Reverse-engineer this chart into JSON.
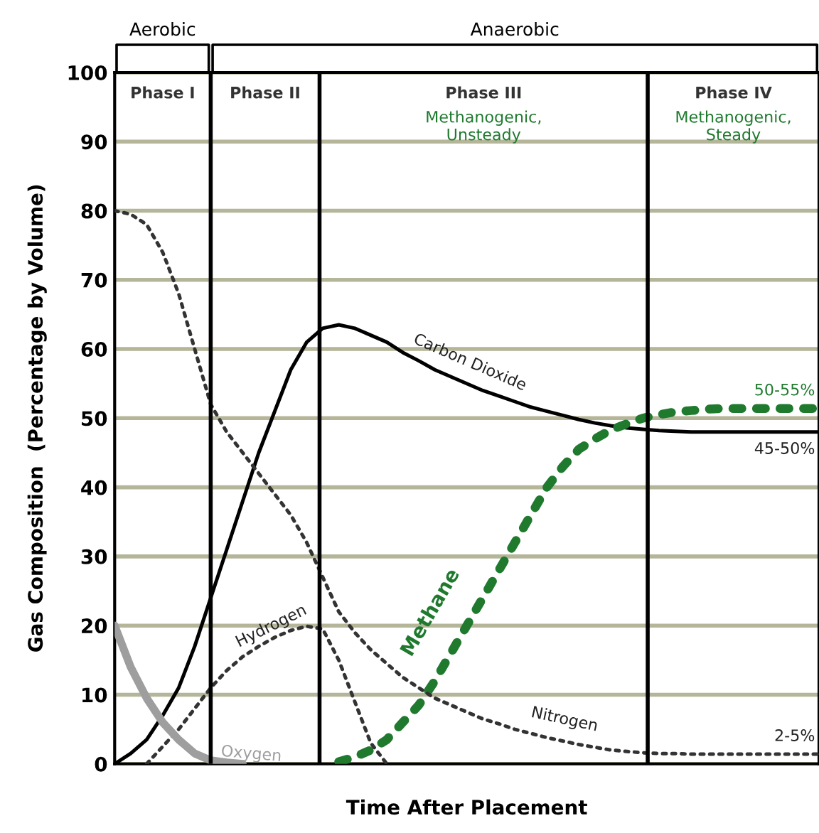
{
  "chart_data": {
    "type": "line",
    "xlabel": "Time After Placement",
    "ylabel": "Gas Composition  (Percentage by Volume)",
    "categories": [
      null,
      null,
      null,
      null,
      null,
      null,
      null,
      null,
      null,
      null,
      null,
      null,
      null,
      null,
      null,
      null,
      null,
      null,
      null,
      null,
      null,
      null,
      null,
      null,
      null,
      null,
      null,
      null,
      null,
      null,
      null,
      null,
      null,
      null,
      null,
      null,
      null,
      null,
      null,
      null,
      null,
      null,
      null,
      null,
      null
    ],
    "ylim": [
      0,
      100
    ],
    "yticks": [
      0,
      10,
      20,
      30,
      40,
      50,
      60,
      70,
      80,
      90,
      100
    ],
    "tick_labels": "y",
    "grid": "y",
    "marker": "none",
    "series": [
      {
        "name": "Carbon Dioxide",
        "color": "#000000",
        "line_style": "solid",
        "values": [
          0,
          1.5,
          3.5,
          7,
          11,
          17,
          24,
          31,
          38,
          45,
          51,
          57,
          61,
          63,
          63.5,
          63,
          62,
          61,
          59.5,
          58.3,
          57,
          56,
          55,
          54,
          53.2,
          52.4,
          51.6,
          51,
          50.4,
          49.8,
          49.3,
          48.9,
          48.6,
          48.4,
          48.2,
          48.1,
          48,
          48,
          48,
          48,
          48,
          48,
          48,
          48,
          48
        ]
      },
      {
        "name": "Methane",
        "color": "#1f7a2e",
        "line_style": "dotted",
        "values": [
          null,
          null,
          null,
          null,
          null,
          null,
          null,
          null,
          null,
          null,
          null,
          null,
          null,
          null,
          0.3,
          1,
          2,
          3.5,
          6,
          8.5,
          12,
          16,
          20,
          24,
          28,
          32,
          36,
          40,
          43,
          45.5,
          47,
          48.3,
          49.2,
          50,
          50.5,
          50.9,
          51.1,
          51.3,
          51.4,
          51.4,
          51.4,
          51.4,
          51.4,
          51.4,
          51.4
        ]
      },
      {
        "name": "Nitrogen",
        "color": "#333333",
        "line_style": "dotted",
        "values": [
          80,
          79.5,
          78,
          74,
          68,
          60,
          52,
          48,
          45,
          42,
          39,
          36,
          32,
          27,
          22,
          19,
          16.5,
          14.5,
          12.5,
          11,
          9.5,
          8.5,
          7.5,
          6.5,
          5.8,
          5,
          4.4,
          3.8,
          3.3,
          2.8,
          2.4,
          2,
          1.8,
          1.6,
          1.5,
          1.5,
          1.4,
          1.4,
          1.4,
          1.4,
          1.4,
          1.4,
          1.4,
          1.4,
          1.4
        ]
      },
      {
        "name": "Hydrogen",
        "color": "#333333",
        "line_style": "dotted",
        "values": [
          null,
          null,
          0,
          2.5,
          5,
          8,
          11,
          13.5,
          15.5,
          17,
          18.3,
          19.3,
          19.9,
          19.5,
          15,
          9,
          3,
          0,
          null,
          null,
          null,
          null,
          null,
          null,
          null,
          null,
          null,
          null,
          null,
          null,
          null,
          null,
          null,
          null,
          null,
          null,
          null,
          null,
          null,
          null,
          null,
          null,
          null,
          null,
          null
        ]
      },
      {
        "name": "Oxygen",
        "color": "#9e9e9e",
        "line_style": "solid",
        "values": [
          20,
          14,
          9.5,
          6,
          3.5,
          1.5,
          0.5,
          0.2,
          0,
          null,
          null,
          null,
          null,
          null,
          null,
          null,
          null,
          null,
          null,
          null,
          null,
          null,
          null,
          null,
          null,
          null,
          null,
          null,
          null,
          null,
          null,
          null,
          null,
          null,
          null,
          null,
          null,
          null,
          null,
          null,
          null,
          null,
          null,
          null,
          null
        ]
      }
    ],
    "annotations": [
      "Aerobic",
      "Anaerobic",
      "Phase I",
      "Phase II",
      "Phase III",
      "Phase IV",
      "Methanogenic,\nUnsteady",
      "Methanogenic,\nSteady",
      {
        "text": "50-55%",
        "y": 51.4
      },
      {
        "text": "45-50%",
        "y": 48
      },
      {
        "text": "2-5%",
        "y": 1.4
      }
    ]
  }
}
